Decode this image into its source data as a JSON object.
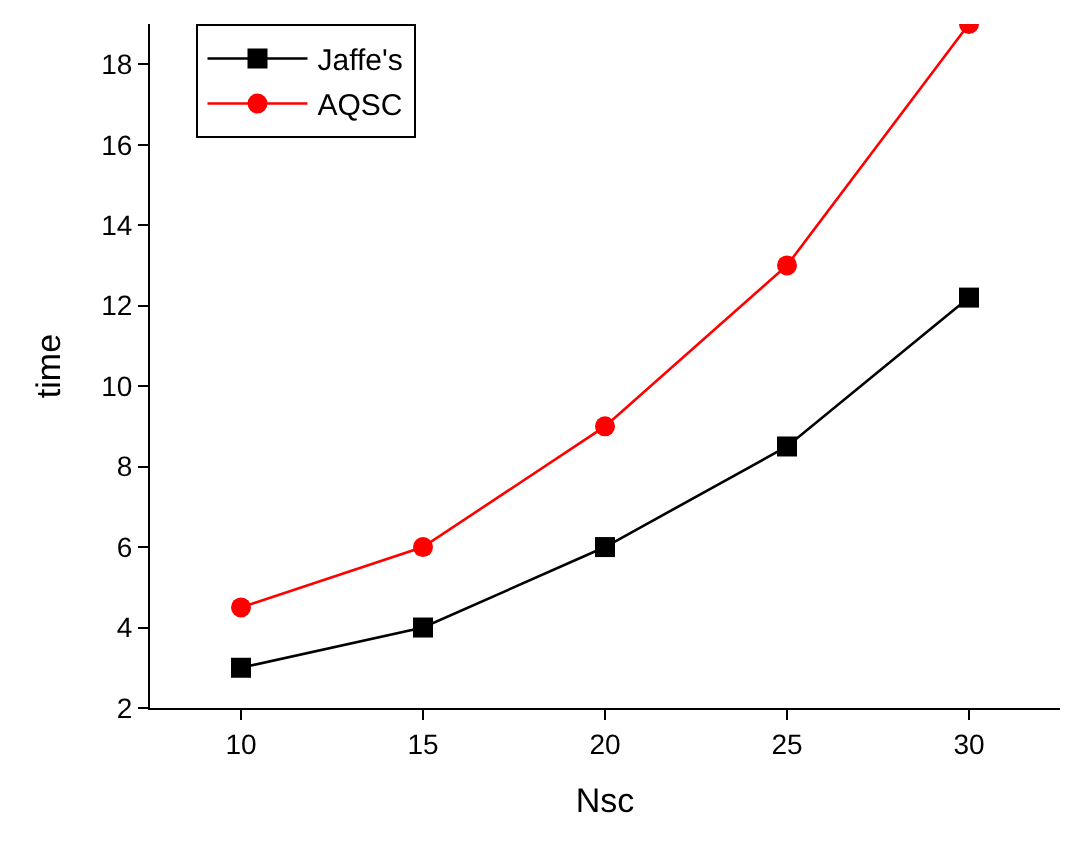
{
  "chart_data": {
    "type": "line",
    "xlabel": "Nsc",
    "ylabel": "time",
    "x": [
      10,
      15,
      20,
      25,
      30
    ],
    "series": [
      {
        "name": "Jaffe's",
        "color": "#000000",
        "values": [
          3,
          4,
          6,
          8.5,
          12.2
        ],
        "marker": "square"
      },
      {
        "name": "AQSC",
        "color": "#ff0000",
        "values": [
          4.5,
          6,
          9,
          13,
          19
        ],
        "marker": "circle"
      }
    ],
    "xlim": [
      7.5,
      32.5
    ],
    "ylim": [
      2,
      19
    ],
    "xticks": [
      10,
      15,
      20,
      25,
      30
    ],
    "yticks": [
      2,
      4,
      6,
      8,
      10,
      12,
      14,
      16,
      18
    ],
    "legend": "top left",
    "line_style": "solid"
  }
}
